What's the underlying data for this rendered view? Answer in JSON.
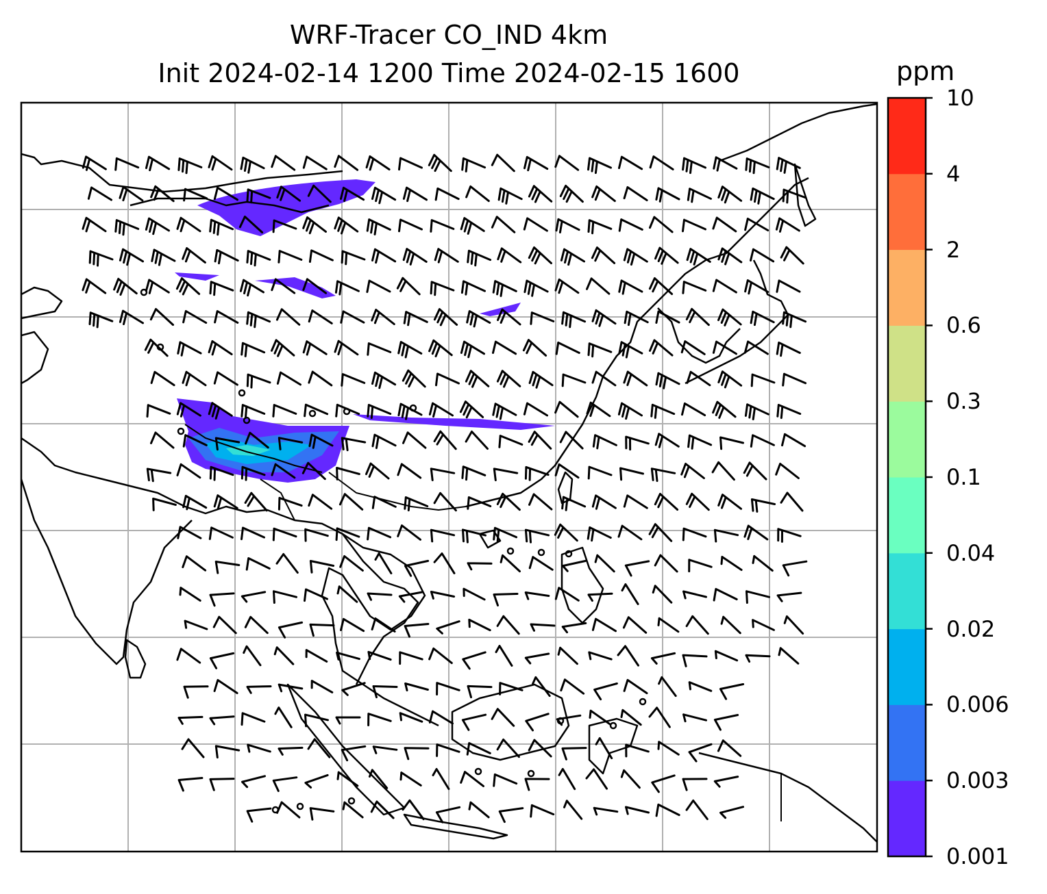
{
  "title": {
    "line1": "WRF-Tracer CO_IND 4km",
    "line2": "Init 2024-02-14 1200 Time 2024-02-15 1600"
  },
  "colorbar": {
    "unit": "ppm",
    "ticks": [
      "0.001",
      "0.003",
      "0.006",
      "0.02",
      "0.04",
      "0.1",
      "0.3",
      "0.6",
      "2",
      "4",
      "10"
    ],
    "colors": [
      "#6428ff",
      "#3373f3",
      "#00b0ee",
      "#33dfd6",
      "#6affc0",
      "#9bfb9d",
      "#cfe187",
      "#fdb064",
      "#ff6e3a",
      "#ff2a18"
    ]
  },
  "map": {
    "features": [
      "coastlines",
      "country-borders",
      "lat-lon-gridlines",
      "wind-barbs",
      "co-tracer-plume"
    ],
    "plume_levels_visible": [
      "0.001",
      "0.003",
      "0.006",
      "0.02"
    ]
  }
}
